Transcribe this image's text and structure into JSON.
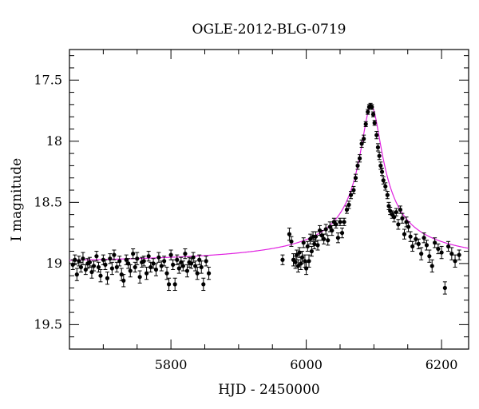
{
  "chart_data": {
    "type": "scatter",
    "title": "OGLE-2012-BLG-0719",
    "xlabel": "HJD - 2450000",
    "ylabel": "I magnitude",
    "xlim": [
      5650,
      6240
    ],
    "ylim": [
      19.7,
      17.25
    ],
    "y_inverted": true,
    "x_ticks": [
      5800,
      6000,
      6200
    ],
    "y_ticks": [
      17.5,
      18,
      18.5,
      19,
      19.5
    ],
    "x_tick_labels": [
      "5800",
      "6000",
      "6200"
    ],
    "y_tick_labels": [
      "17.5",
      "18",
      "18.5",
      "19",
      "19.5"
    ],
    "grid": false,
    "colors": {
      "points": "#000000",
      "model": "#e020e0"
    },
    "model": {
      "type": "line",
      "baseline_mag": 19.02,
      "peak_mag": 17.71,
      "peak_hjd": 6096
    },
    "series": [
      {
        "type": "scatter_errorbar",
        "points": [
          [
            5655,
            19.01,
            0.04
          ],
          [
            5658,
            18.97,
            0.04
          ],
          [
            5661,
            19.09,
            0.05
          ],
          [
            5664,
            18.98,
            0.04
          ],
          [
            5667,
            19.03,
            0.04
          ],
          [
            5670,
            18.96,
            0.05
          ],
          [
            5674,
            19.05,
            0.04
          ],
          [
            5677,
            19.0,
            0.04
          ],
          [
            5680,
            18.99,
            0.04
          ],
          [
            5683,
            19.07,
            0.05
          ],
          [
            5686,
            19.02,
            0.04
          ],
          [
            5690,
            18.94,
            0.04
          ],
          [
            5693,
            19.03,
            0.04
          ],
          [
            5696,
            19.1,
            0.05
          ],
          [
            5700,
            18.97,
            0.04
          ],
          [
            5703,
            19.01,
            0.04
          ],
          [
            5706,
            19.12,
            0.05
          ],
          [
            5710,
            18.96,
            0.04
          ],
          [
            5713,
            19.04,
            0.05
          ],
          [
            5716,
            18.93,
            0.04
          ],
          [
            5720,
            19.03,
            0.04
          ],
          [
            5724,
            18.98,
            0.04
          ],
          [
            5727,
            19.09,
            0.05
          ],
          [
            5730,
            19.14,
            0.05
          ],
          [
            5734,
            18.97,
            0.04
          ],
          [
            5737,
            19.0,
            0.04
          ],
          [
            5740,
            19.06,
            0.05
          ],
          [
            5744,
            18.92,
            0.04
          ],
          [
            5747,
            19.03,
            0.04
          ],
          [
            5750,
            18.96,
            0.05
          ],
          [
            5754,
            19.11,
            0.05
          ],
          [
            5757,
            18.99,
            0.04
          ],
          [
            5760,
            18.98,
            0.04
          ],
          [
            5764,
            19.08,
            0.05
          ],
          [
            5767,
            18.94,
            0.04
          ],
          [
            5770,
            19.03,
            0.04
          ],
          [
            5774,
            19.0,
            0.04
          ],
          [
            5778,
            19.05,
            0.05
          ],
          [
            5782,
            18.95,
            0.04
          ],
          [
            5786,
            19.02,
            0.04
          ],
          [
            5790,
            18.98,
            0.04
          ],
          [
            5794,
            19.08,
            0.05
          ],
          [
            5797,
            19.17,
            0.05
          ],
          [
            5800,
            18.93,
            0.04
          ],
          [
            5803,
            19.01,
            0.04
          ],
          [
            5806,
            19.17,
            0.05
          ],
          [
            5809,
            18.97,
            0.04
          ],
          [
            5812,
            19.04,
            0.04
          ],
          [
            5815,
            18.99,
            0.04
          ],
          [
            5818,
            19.02,
            0.04
          ],
          [
            5821,
            18.92,
            0.04
          ],
          [
            5824,
            19.06,
            0.05
          ],
          [
            5827,
            18.99,
            0.04
          ],
          [
            5830,
            19.0,
            0.04
          ],
          [
            5833,
            18.95,
            0.04
          ],
          [
            5836,
            19.02,
            0.04
          ],
          [
            5839,
            19.08,
            0.05
          ],
          [
            5842,
            18.97,
            0.04
          ],
          [
            5845,
            19.03,
            0.05
          ],
          [
            5848,
            19.17,
            0.05
          ],
          [
            5852,
            18.98,
            0.04
          ],
          [
            5856,
            19.08,
            0.05
          ],
          [
            5965,
            18.97,
            0.04
          ],
          [
            5975,
            18.76,
            0.05
          ],
          [
            5978,
            18.82,
            0.04
          ],
          [
            5981,
            18.97,
            0.05
          ],
          [
            5984,
            18.99,
            0.05
          ],
          [
            5986,
            18.93,
            0.04
          ],
          [
            5988,
            19.02,
            0.05
          ],
          [
            5990,
            18.91,
            0.04
          ],
          [
            5992,
            19.0,
            0.05
          ],
          [
            5994,
            18.95,
            0.05
          ],
          [
            5996,
            18.83,
            0.04
          ],
          [
            5998,
            18.98,
            0.05
          ],
          [
            6000,
            19.04,
            0.05
          ],
          [
            6002,
            18.86,
            0.04
          ],
          [
            6004,
            18.98,
            0.05
          ],
          [
            6006,
            18.8,
            0.04
          ],
          [
            6008,
            18.9,
            0.04
          ],
          [
            6010,
            18.78,
            0.04
          ],
          [
            6012,
            18.84,
            0.04
          ],
          [
            6014,
            18.78,
            0.04
          ],
          [
            6017,
            18.85,
            0.04
          ],
          [
            6020,
            18.73,
            0.04
          ],
          [
            6023,
            18.77,
            0.04
          ],
          [
            6026,
            18.8,
            0.04
          ],
          [
            6029,
            18.72,
            0.04
          ],
          [
            6032,
            18.81,
            0.04
          ],
          [
            6035,
            18.7,
            0.04
          ],
          [
            6038,
            18.73,
            0.04
          ],
          [
            6041,
            18.66,
            0.03
          ],
          [
            6044,
            18.68,
            0.03
          ],
          [
            6047,
            18.79,
            0.04
          ],
          [
            6050,
            18.66,
            0.03
          ],
          [
            6053,
            18.75,
            0.04
          ],
          [
            6056,
            18.66,
            0.03
          ],
          [
            6060,
            18.56,
            0.03
          ],
          [
            6063,
            18.52,
            0.03
          ],
          [
            6066,
            18.44,
            0.03
          ],
          [
            6070,
            18.4,
            0.03
          ],
          [
            6073,
            18.3,
            0.03
          ],
          [
            6076,
            18.2,
            0.03
          ],
          [
            6079,
            18.14,
            0.03
          ],
          [
            6082,
            18.02,
            0.03
          ],
          [
            6085,
            17.98,
            0.03
          ],
          [
            6088,
            17.86,
            0.02
          ],
          [
            6091,
            17.76,
            0.02
          ],
          [
            6093,
            17.72,
            0.02
          ],
          [
            6095,
            17.71,
            0.02
          ],
          [
            6097,
            17.72,
            0.02
          ],
          [
            6099,
            17.78,
            0.02
          ],
          [
            6101,
            17.85,
            0.02
          ],
          [
            6104,
            17.95,
            0.03
          ],
          [
            6106,
            18.05,
            0.03
          ],
          [
            6108,
            18.12,
            0.03
          ],
          [
            6110,
            18.2,
            0.03
          ],
          [
            6112,
            18.25,
            0.03
          ],
          [
            6114,
            18.32,
            0.03
          ],
          [
            6117,
            18.37,
            0.03
          ],
          [
            6120,
            18.44,
            0.03
          ],
          [
            6122,
            18.53,
            0.03
          ],
          [
            6124,
            18.57,
            0.03
          ],
          [
            6127,
            18.6,
            0.03
          ],
          [
            6130,
            18.62,
            0.04
          ],
          [
            6133,
            18.58,
            0.03
          ],
          [
            6136,
            18.68,
            0.04
          ],
          [
            6139,
            18.56,
            0.03
          ],
          [
            6142,
            18.63,
            0.04
          ],
          [
            6145,
            18.76,
            0.04
          ],
          [
            6148,
            18.66,
            0.04
          ],
          [
            6151,
            18.7,
            0.04
          ],
          [
            6154,
            18.78,
            0.04
          ],
          [
            6157,
            18.86,
            0.04
          ],
          [
            6162,
            18.8,
            0.04
          ],
          [
            6166,
            18.84,
            0.04
          ],
          [
            6170,
            18.92,
            0.05
          ],
          [
            6174,
            18.79,
            0.04
          ],
          [
            6178,
            18.85,
            0.04
          ],
          [
            6182,
            18.94,
            0.05
          ],
          [
            6186,
            19.02,
            0.05
          ],
          [
            6190,
            18.83,
            0.04
          ],
          [
            6195,
            18.88,
            0.04
          ],
          [
            6200,
            18.91,
            0.05
          ],
          [
            6205,
            19.2,
            0.05
          ],
          [
            6210,
            18.86,
            0.04
          ],
          [
            6215,
            18.92,
            0.05
          ],
          [
            6220,
            18.98,
            0.05
          ],
          [
            6226,
            18.93,
            0.04
          ]
        ]
      }
    ]
  }
}
